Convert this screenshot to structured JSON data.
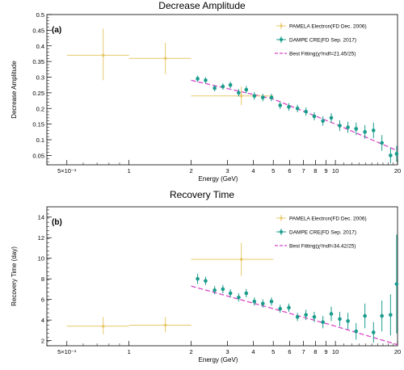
{
  "colors": {
    "pamela": "#e8c86a",
    "dampe": "#1a9c8c",
    "fit": "#d946c8",
    "axis": "#000000"
  },
  "chart_data": [
    {
      "type": "scatter",
      "title": "Decrease Amplitude",
      "panel_label": "(a)",
      "xlabel": "Energy (GeV)",
      "ylabel": "Decrease Amplitude",
      "xscale": "log",
      "xlim": [
        0.4,
        20
      ],
      "ylim": [
        0.02,
        0.5
      ],
      "yticks": [
        0.05,
        0.1,
        0.15,
        0.2,
        0.25,
        0.3,
        0.35,
        0.4,
        0.45,
        0.5
      ],
      "ytick_labels": [
        "0.05",
        "0.1",
        "0.15",
        "0.2",
        "0.25",
        "0.3",
        "0.35",
        "0.4",
        "0.45",
        "0.5"
      ],
      "xticks": [
        0.5,
        1,
        2,
        3,
        4,
        5,
        6,
        7,
        8,
        9,
        10,
        20
      ],
      "xtick_labels": [
        "5×10⁻¹",
        "1",
        "2",
        "3",
        "4",
        "5",
        "6",
        "7",
        "8",
        "9",
        "10",
        "20"
      ],
      "legend_position": "top-right",
      "legend": [
        {
          "label": "PAMELA Electron(FD Dec. 2006)"
        },
        {
          "label": "DAMPE CRE(FD Sep. 2017)"
        },
        {
          "label": "Best Fitting(χ²/ndf=21.45/25)"
        }
      ],
      "series": [
        {
          "name": "PAMELA Electron(FD Dec. 2006)",
          "points": [
            {
              "x": 0.75,
              "y": 0.37,
              "xlo": 0.5,
              "xhi": 1.0,
              "ylo": 0.29,
              "yhi": 0.455
            },
            {
              "x": 1.5,
              "y": 0.36,
              "xlo": 1.0,
              "xhi": 2.0,
              "ylo": 0.31,
              "yhi": 0.41
            },
            {
              "x": 3.5,
              "y": 0.24,
              "xlo": 2.0,
              "xhi": 5.0,
              "ylo": 0.21,
              "yhi": 0.27
            }
          ]
        },
        {
          "name": "DAMPE CRE(FD Sep. 2017)",
          "points": [
            {
              "x": 2.15,
              "y": 0.295,
              "err": 0.01
            },
            {
              "x": 2.35,
              "y": 0.29,
              "err": 0.01
            },
            {
              "x": 2.6,
              "y": 0.265,
              "err": 0.01
            },
            {
              "x": 2.85,
              "y": 0.27,
              "err": 0.01
            },
            {
              "x": 3.1,
              "y": 0.275,
              "err": 0.01
            },
            {
              "x": 3.4,
              "y": 0.25,
              "err": 0.012
            },
            {
              "x": 3.7,
              "y": 0.26,
              "err": 0.012
            },
            {
              "x": 4.05,
              "y": 0.24,
              "err": 0.012
            },
            {
              "x": 4.45,
              "y": 0.235,
              "err": 0.012
            },
            {
              "x": 4.9,
              "y": 0.235,
              "err": 0.012
            },
            {
              "x": 5.4,
              "y": 0.21,
              "err": 0.012
            },
            {
              "x": 5.95,
              "y": 0.205,
              "err": 0.012
            },
            {
              "x": 6.55,
              "y": 0.2,
              "err": 0.012
            },
            {
              "x": 7.2,
              "y": 0.19,
              "err": 0.013
            },
            {
              "x": 7.9,
              "y": 0.175,
              "err": 0.013
            },
            {
              "x": 8.7,
              "y": 0.16,
              "err": 0.015
            },
            {
              "x": 9.55,
              "y": 0.17,
              "err": 0.015
            },
            {
              "x": 10.5,
              "y": 0.145,
              "err": 0.017
            },
            {
              "x": 11.5,
              "y": 0.14,
              "err": 0.018
            },
            {
              "x": 12.6,
              "y": 0.135,
              "err": 0.02
            },
            {
              "x": 13.9,
              "y": 0.125,
              "err": 0.022
            },
            {
              "x": 15.3,
              "y": 0.13,
              "err": 0.025
            },
            {
              "x": 16.8,
              "y": 0.09,
              "err": 0.025
            },
            {
              "x": 18.5,
              "y": 0.05,
              "err": 0.025
            },
            {
              "x": 19.8,
              "y": 0.055,
              "err": 0.025
            }
          ]
        },
        {
          "name": "Best Fitting(χ²/ndf=21.45/25)",
          "line": [
            {
              "x": 2.0,
              "y": 0.29
            },
            {
              "x": 5.0,
              "y": 0.23
            },
            {
              "x": 10.0,
              "y": 0.15
            },
            {
              "x": 20.0,
              "y": 0.065
            }
          ]
        }
      ]
    },
    {
      "type": "scatter",
      "title": "Recovery Time",
      "panel_label": "(b)",
      "xlabel": "Energy (GeV)",
      "ylabel": "Recovery Time (day)",
      "xscale": "log",
      "xlim": [
        0.4,
        20
      ],
      "ylim": [
        1.5,
        15
      ],
      "yticks": [
        2,
        4,
        6,
        8,
        10,
        12,
        14
      ],
      "ytick_labels": [
        "2",
        "4",
        "6",
        "8",
        "10",
        "12",
        "14"
      ],
      "xticks": [
        0.5,
        1,
        2,
        3,
        4,
        5,
        6,
        7,
        8,
        9,
        10,
        20
      ],
      "xtick_labels": [
        "5×10⁻¹",
        "1",
        "2",
        "3",
        "4",
        "5",
        "6",
        "7",
        "8",
        "9",
        "10",
        "20"
      ],
      "legend_position": "top-right",
      "legend": [
        {
          "label": "PAMELA Electron(FD Dec. 2006)"
        },
        {
          "label": "DAMPE CRE(FD Sep. 2017)"
        },
        {
          "label": "Best Fitting(χ²/ndf=34.42/25)"
        }
      ],
      "series": [
        {
          "name": "PAMELA Electron(FD Dec. 2006)",
          "points": [
            {
              "x": 0.75,
              "y": 3.4,
              "xlo": 0.5,
              "xhi": 1.0,
              "ylo": 2.6,
              "yhi": 4.3
            },
            {
              "x": 1.5,
              "y": 3.5,
              "xlo": 1.0,
              "xhi": 2.0,
              "ylo": 2.8,
              "yhi": 4.3
            },
            {
              "x": 3.5,
              "y": 9.9,
              "xlo": 2.0,
              "xhi": 5.0,
              "ylo": 8.3,
              "yhi": 11.5
            }
          ]
        },
        {
          "name": "DAMPE CRE(FD Sep. 2017)",
          "points": [
            {
              "x": 2.15,
              "y": 8.0,
              "err": 0.5
            },
            {
              "x": 2.35,
              "y": 7.8,
              "err": 0.4
            },
            {
              "x": 2.6,
              "y": 6.9,
              "err": 0.4
            },
            {
              "x": 2.85,
              "y": 7.0,
              "err": 0.4
            },
            {
              "x": 3.1,
              "y": 6.6,
              "err": 0.4
            },
            {
              "x": 3.4,
              "y": 6.2,
              "err": 0.4
            },
            {
              "x": 3.7,
              "y": 6.6,
              "err": 0.4
            },
            {
              "x": 4.05,
              "y": 5.8,
              "err": 0.4
            },
            {
              "x": 4.45,
              "y": 5.6,
              "err": 0.4
            },
            {
              "x": 4.9,
              "y": 5.8,
              "err": 0.4
            },
            {
              "x": 5.4,
              "y": 5.1,
              "err": 0.4
            },
            {
              "x": 5.95,
              "y": 5.2,
              "err": 0.4
            },
            {
              "x": 6.55,
              "y": 4.3,
              "err": 0.4
            },
            {
              "x": 7.2,
              "y": 4.5,
              "err": 0.5
            },
            {
              "x": 7.9,
              "y": 4.3,
              "err": 0.5
            },
            {
              "x": 8.7,
              "y": 3.8,
              "err": 0.6
            },
            {
              "x": 9.55,
              "y": 4.6,
              "err": 0.7
            },
            {
              "x": 10.5,
              "y": 4.1,
              "err": 0.7
            },
            {
              "x": 11.5,
              "y": 3.9,
              "err": 0.8
            },
            {
              "x": 12.6,
              "y": 2.9,
              "err": 0.8
            },
            {
              "x": 13.9,
              "y": 4.4,
              "err": 1.2
            },
            {
              "x": 15.3,
              "y": 2.8,
              "err": 1.0
            },
            {
              "x": 16.8,
              "y": 4.4,
              "err": 1.5
            },
            {
              "x": 18.5,
              "y": 4.5,
              "err": 2.0
            },
            {
              "x": 19.8,
              "y": 7.5,
              "err": 4.8
            }
          ]
        },
        {
          "name": "Best Fitting(χ²/ndf=34.42/25)",
          "line": [
            {
              "x": 2.0,
              "y": 7.3
            },
            {
              "x": 5.0,
              "y": 5.1
            },
            {
              "x": 10.0,
              "y": 3.4
            },
            {
              "x": 20.0,
              "y": 1.6
            }
          ]
        }
      ]
    }
  ]
}
